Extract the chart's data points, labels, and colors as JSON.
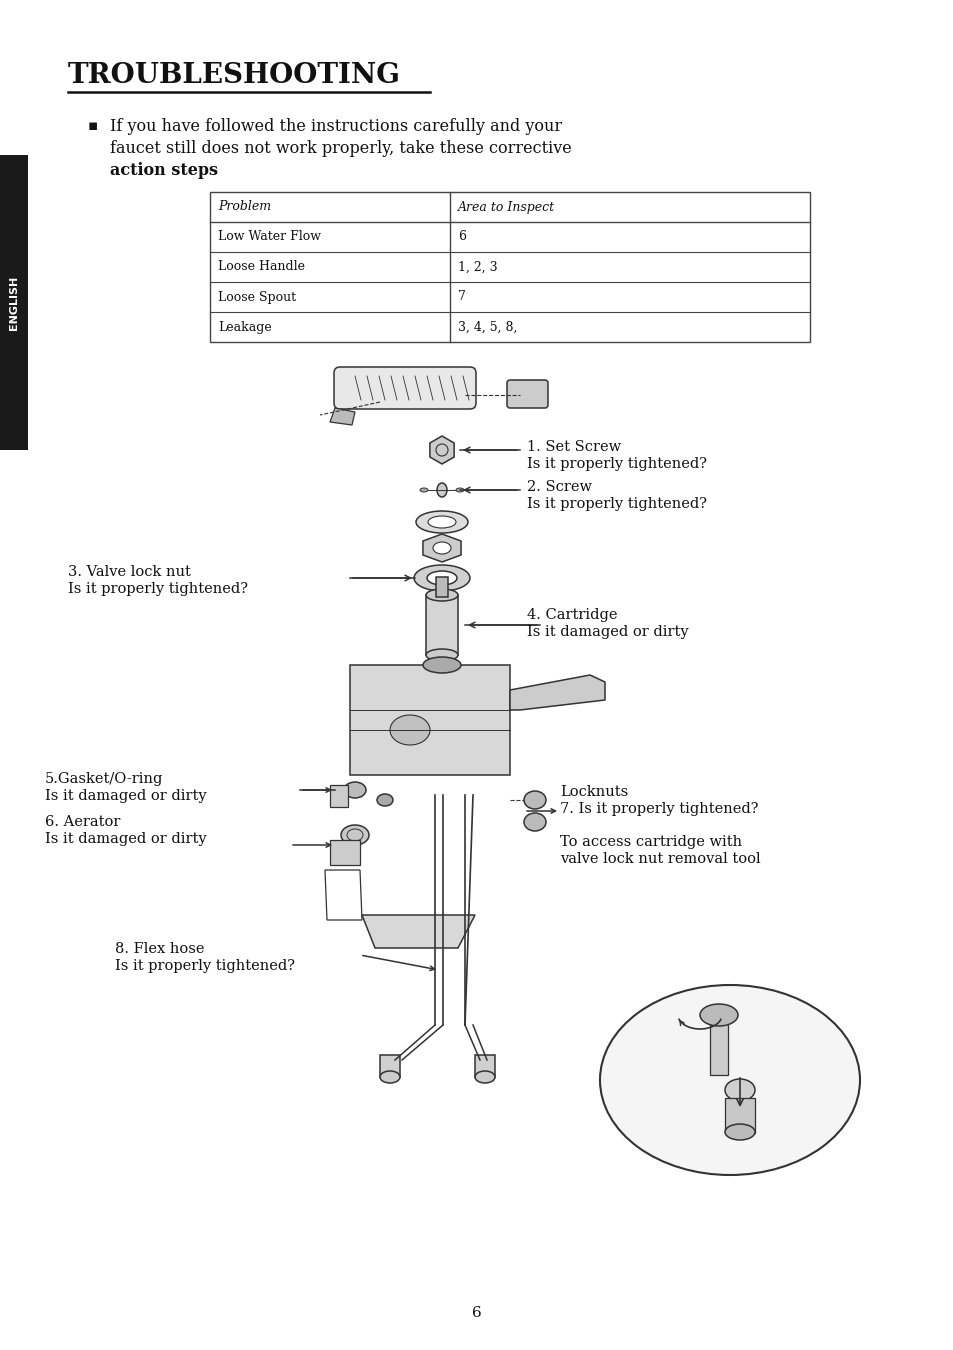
{
  "bg_color": "#ffffff",
  "sidebar_color": "#1a1a1a",
  "sidebar_text": "ENGLISH",
  "title": "TROUBLESHOOTING",
  "bullet_text_line1": "If you have followed the instructions carefully and your",
  "bullet_text_line2": "faucet still does not work properly, take these corrective",
  "bullet_text_line3": "action steps",
  "table_header_col1": "Problem",
  "table_header_col2": "Area to Inspect",
  "table_rows": [
    [
      "Low Water Flow",
      "6"
    ],
    [
      "Loose Handle",
      "1, 2, 3"
    ],
    [
      "Loose Spout",
      "7"
    ],
    [
      "Leakage",
      "3, 4, 5, 8,"
    ]
  ],
  "ann1a": "1. Set Screw",
  "ann1b": "Is it properly tightened?",
  "ann2a": "2. Screw",
  "ann2b": "Is it properly tightened?",
  "ann3a": "3. Valve lock nut",
  "ann3b": "Is it properly tightened?",
  "ann4a": "4. Cartridge",
  "ann4b": "Is it damaged or dirty",
  "ann5a": "5.Gasket/O-ring",
  "ann5b": "Is it damaged or dirty",
  "ann6a": "6. Aerator",
  "ann6b": "Is it damaged or dirty",
  "ann7a": "Locknuts",
  "ann7b": "7. Is it properly tightened?",
  "ann8a": "To access cartridge with",
  "ann8b": "valve lock nut removal tool",
  "ann9a": "8. Flex hose",
  "ann9b": "Is it properly tightened?",
  "page_number": "6"
}
